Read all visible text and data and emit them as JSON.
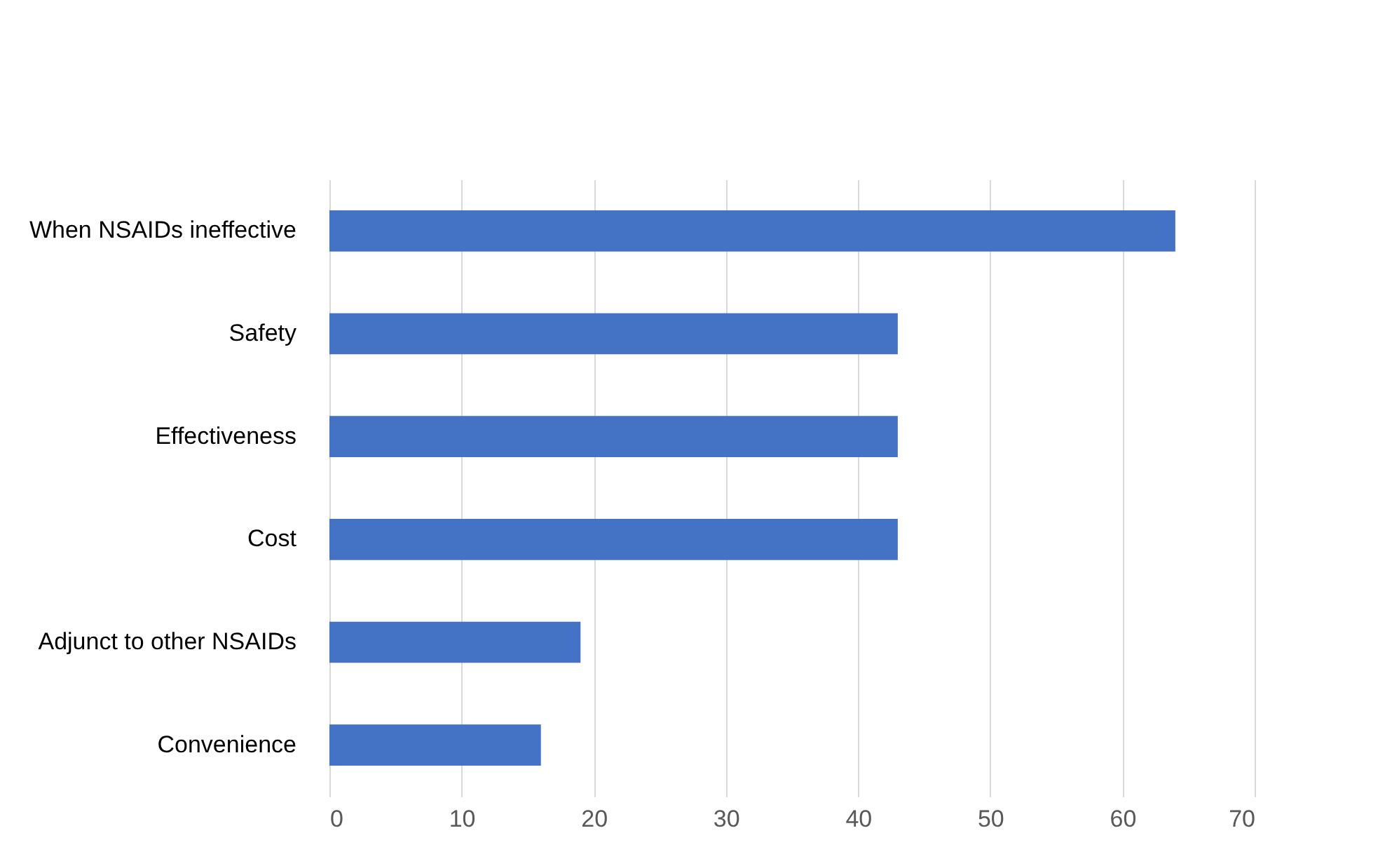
{
  "chart_data": {
    "type": "bar",
    "orientation": "horizontal",
    "categories": [
      "When NSAIDs ineffective",
      "Safety",
      "Effectiveness",
      "Cost",
      "Adjunct to other NSAIDs",
      "Convenience"
    ],
    "values": [
      64,
      43,
      43,
      43,
      19,
      16
    ],
    "color": "#4472c4",
    "xlim": [
      0,
      70
    ],
    "xticks": [
      0,
      10,
      20,
      30,
      40,
      50,
      60,
      70
    ],
    "grid": "x"
  }
}
